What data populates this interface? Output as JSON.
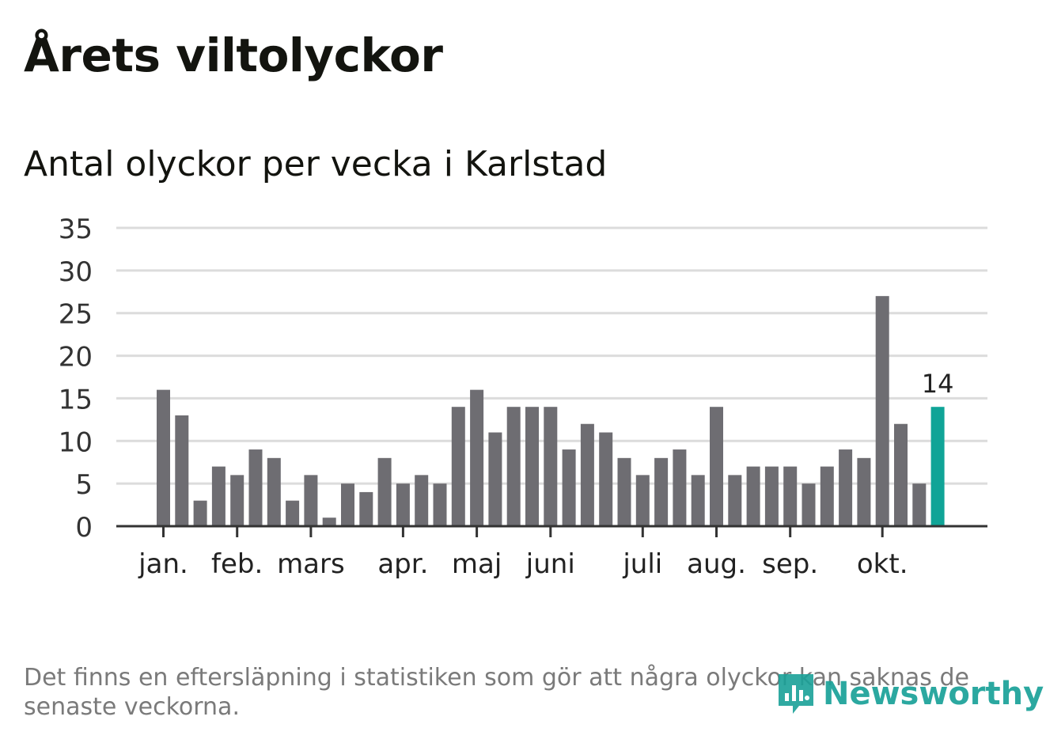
{
  "title": "Årets viltolyckor",
  "subtitle": "Antal olyckor per vecka i Karlstad",
  "footnote": "Det finns en eftersläpning i statistiken som gör att några olyckor kan saknas de senaste veckorna.",
  "logo": {
    "text": "Newsworthy",
    "icon": "newsworthy-chart-icon"
  },
  "colors": {
    "bar": "#6e6d72",
    "highlight": "#10a497",
    "grid": "#dcdcdc",
    "axis": "#333333",
    "text": "#13140f"
  },
  "chart_data": {
    "type": "bar",
    "title": "Antal olyckor per vecka i Karlstad",
    "xlabel": "",
    "ylabel": "",
    "ylim": [
      0,
      35
    ],
    "yticks": [
      0,
      5,
      10,
      15,
      20,
      25,
      30,
      35
    ],
    "grid": true,
    "month_labels": [
      {
        "label": "jan.",
        "week_index": 0
      },
      {
        "label": "feb.",
        "week_index": 4
      },
      {
        "label": "mars",
        "week_index": 8
      },
      {
        "label": "apr.",
        "week_index": 13
      },
      {
        "label": "maj",
        "week_index": 17
      },
      {
        "label": "juni",
        "week_index": 21
      },
      {
        "label": "juli",
        "week_index": 26
      },
      {
        "label": "aug.",
        "week_index": 30
      },
      {
        "label": "sep.",
        "week_index": 34
      },
      {
        "label": "okt.",
        "week_index": 39
      }
    ],
    "values": [
      16,
      13,
      3,
      7,
      6,
      9,
      8,
      3,
      6,
      1,
      5,
      4,
      8,
      5,
      6,
      5,
      14,
      16,
      11,
      14,
      14,
      14,
      9,
      12,
      11,
      8,
      6,
      8,
      9,
      6,
      14,
      6,
      7,
      7,
      7,
      5,
      7,
      9,
      8,
      27,
      12,
      5,
      14
    ],
    "highlight_index": 42,
    "highlight_label": "14"
  }
}
